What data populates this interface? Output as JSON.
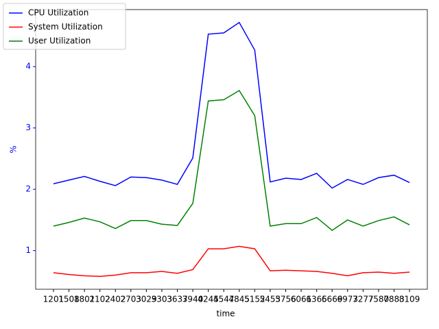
{
  "chart_data": {
    "type": "line",
    "x_label": "time",
    "y_label": "%",
    "categories": [
      "1201",
      "1508",
      "1801",
      "2102",
      "2402",
      "2703",
      "3029",
      "3303",
      "3637",
      "3940",
      "4245",
      "4547",
      "4845",
      "5152",
      "5453",
      "5756",
      "6061",
      "6365",
      "6669",
      "6973",
      "7277",
      "7580",
      "7883",
      "8109"
    ],
    "series": [
      {
        "name": "CPU Utilization",
        "color": "#0000ff",
        "values": [
          2.09,
          2.15,
          2.21,
          2.13,
          2.06,
          2.2,
          2.19,
          2.15,
          2.08,
          2.51,
          4.53,
          4.55,
          4.72,
          4.27,
          2.12,
          2.18,
          2.16,
          2.26,
          2.02,
          2.16,
          2.08,
          2.19,
          2.23,
          2.11
        ]
      },
      {
        "name": "System Utilization",
        "color": "#ff0000",
        "values": [
          0.64,
          0.61,
          0.59,
          0.58,
          0.6,
          0.64,
          0.64,
          0.66,
          0.63,
          0.69,
          1.03,
          1.03,
          1.07,
          1.03,
          0.67,
          0.68,
          0.67,
          0.66,
          0.63,
          0.59,
          0.64,
          0.65,
          0.63,
          0.65
        ]
      },
      {
        "name": "User Utilization",
        "color": "#008000",
        "values": [
          1.4,
          1.46,
          1.53,
          1.47,
          1.36,
          1.49,
          1.49,
          1.43,
          1.41,
          1.77,
          3.44,
          3.46,
          3.61,
          3.2,
          1.4,
          1.44,
          1.44,
          1.54,
          1.33,
          1.5,
          1.4,
          1.49,
          1.55,
          1.42
        ]
      }
    ],
    "ylim": [
      0.37,
      4.93
    ],
    "yticks": [
      1,
      2,
      3,
      4
    ],
    "y_axis_color": "#0000ff",
    "legend": "upper left",
    "grid": false
  }
}
